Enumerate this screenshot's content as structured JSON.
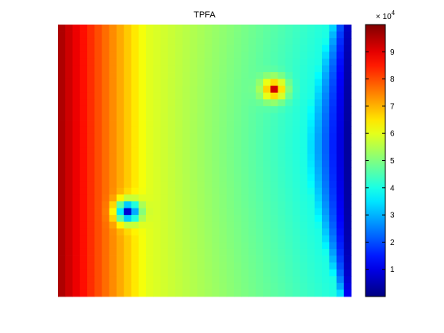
{
  "chart_data": {
    "type": "heatmap",
    "title": "TPFA",
    "grid": false,
    "x_axis_visible": false,
    "y_axis_visible": false,
    "colormap": "jet",
    "colorbar": {
      "placement": "right",
      "range": [
        0,
        100000
      ],
      "ticks": [
        1,
        2,
        3,
        4,
        5,
        6,
        7,
        8,
        9
      ],
      "tick_labels": [
        "1",
        "2",
        "3",
        "4",
        "5",
        "6",
        "7",
        "8",
        "9"
      ],
      "exponent_label": "× 10",
      "exponent_power": "4"
    },
    "grid_size": [
      40,
      40
    ],
    "value_range": [
      0,
      100000
    ],
    "features": [
      {
        "type": "source_peak",
        "col": 29,
        "row": 9,
        "value": 92000
      },
      {
        "type": "sink_minimum",
        "col": 9,
        "row": 27,
        "value": 8000
      }
    ]
  }
}
